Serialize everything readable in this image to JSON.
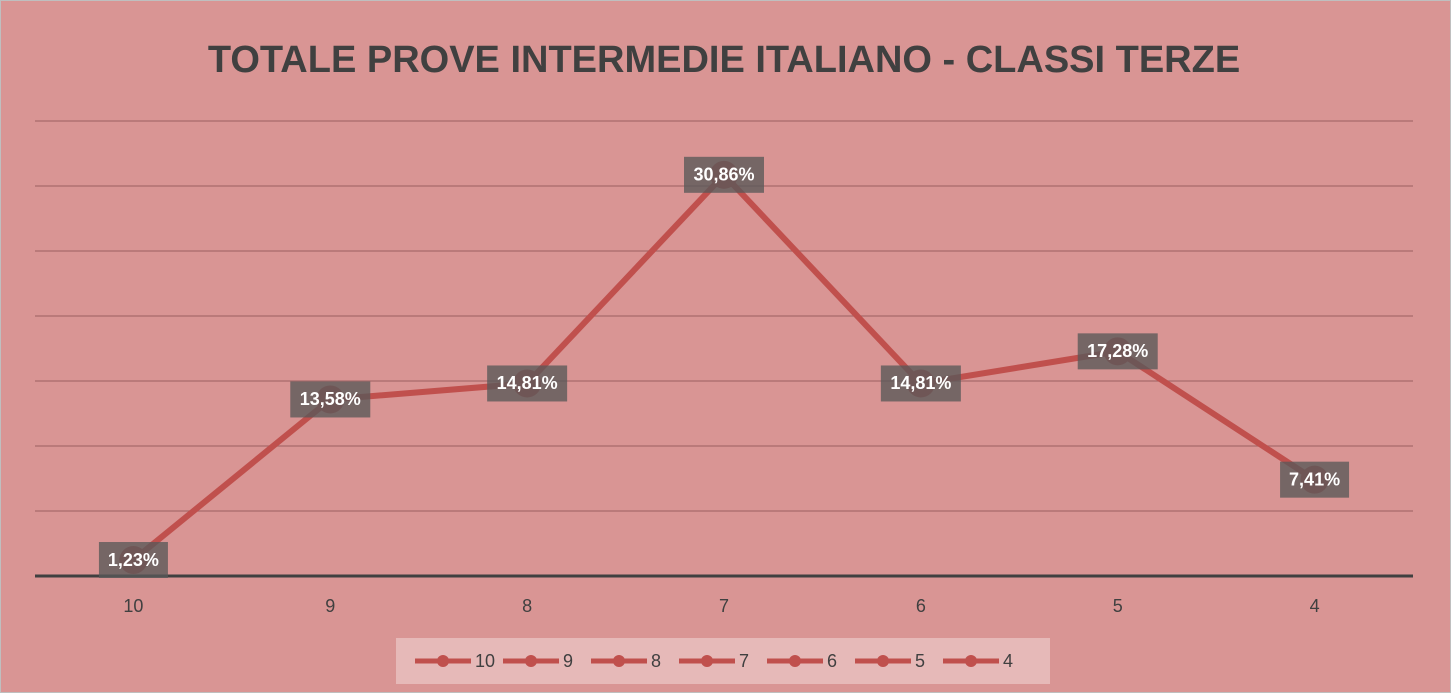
{
  "chart_data": {
    "type": "line",
    "title": "TOTALE PROVE INTERMEDIE ITALIANO - CLASSI TERZE",
    "categories": [
      "10",
      "9",
      "8",
      "7",
      "6",
      "5",
      "4"
    ],
    "values": [
      1.23,
      13.58,
      14.81,
      30.86,
      14.81,
      17.28,
      7.41
    ],
    "value_labels": [
      "1,23%",
      "13,58%",
      "14,81%",
      "30,86%",
      "14,81%",
      "17,28%",
      "7,41%"
    ],
    "color": "#c0504d",
    "ylim": [
      0,
      35
    ],
    "yticks": [
      0,
      5,
      10,
      15,
      20,
      25,
      30,
      35
    ],
    "grid": true,
    "legend": "bottom"
  }
}
